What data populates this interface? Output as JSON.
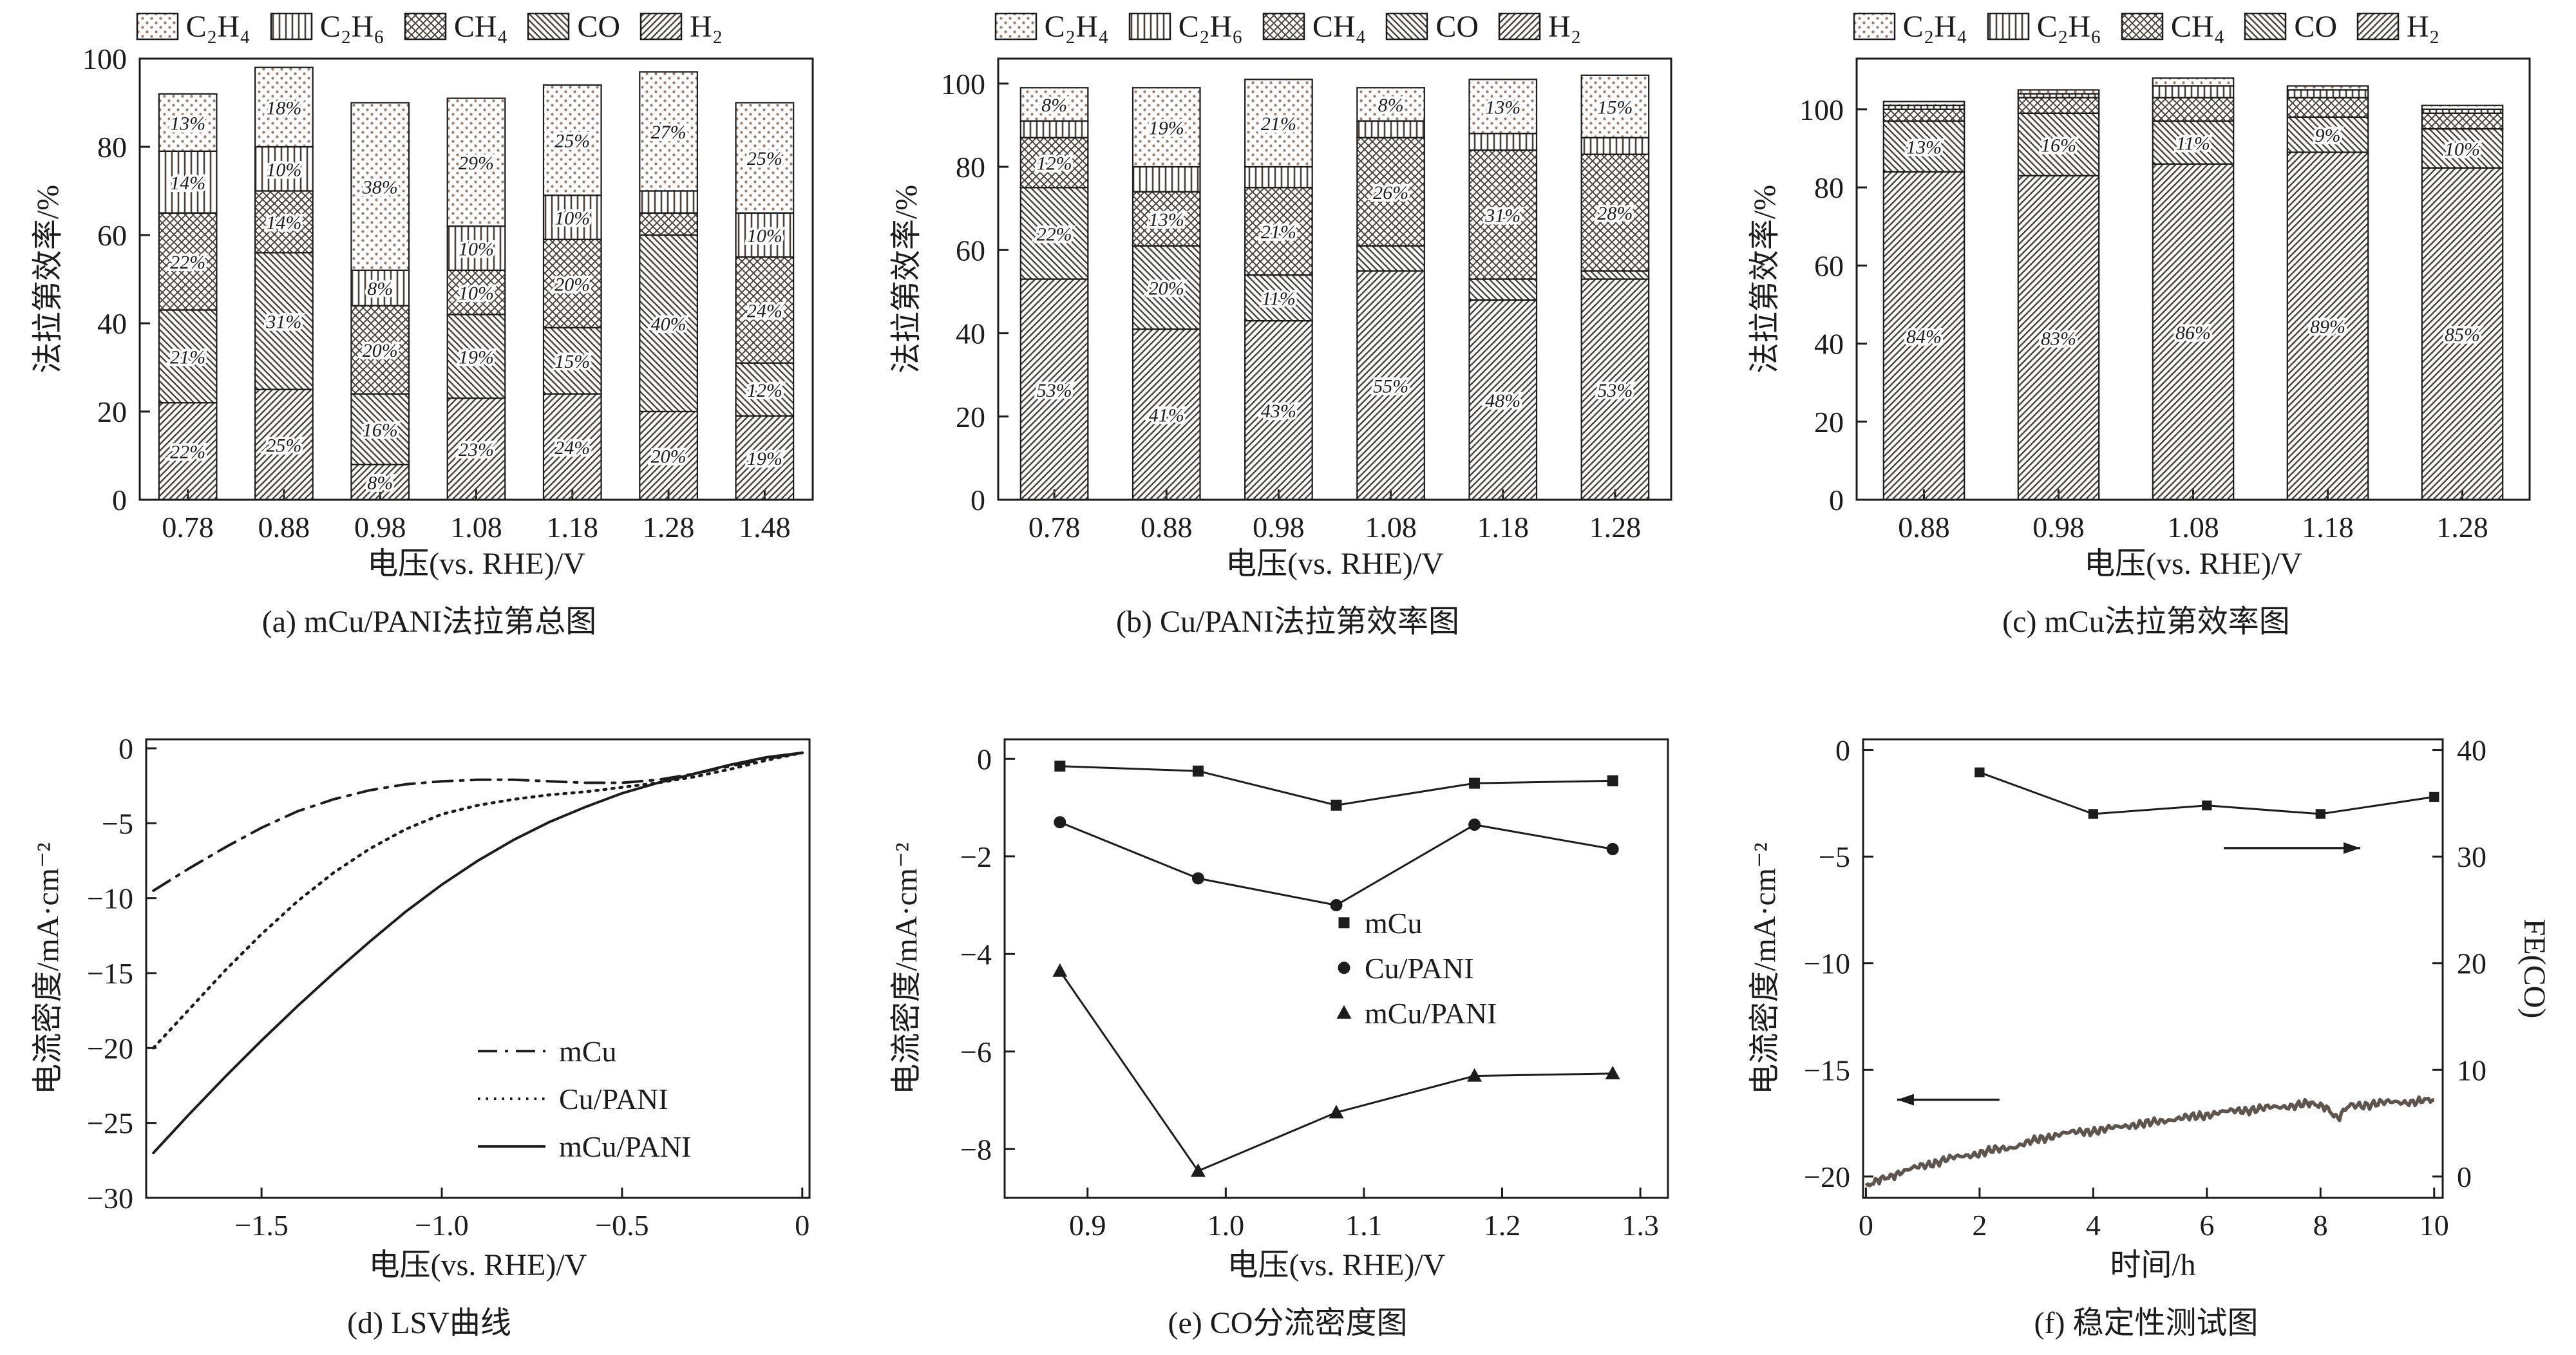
{
  "figure": {
    "background": "#ffffff"
  },
  "colors": {
    "ink": "#1c1c1c",
    "hatch": "#4a423c",
    "dots": "#9b7f6d",
    "noisy": "#5d544e"
  },
  "gas_legend": {
    "items": [
      {
        "id": "C2H4",
        "label": "C₂H₄",
        "pattern": "dots"
      },
      {
        "id": "C2H6",
        "label": "C₂H₆",
        "pattern": "vert"
      },
      {
        "id": "CH4",
        "label": "CH₄",
        "pattern": "cross"
      },
      {
        "id": "CO",
        "label": "CO",
        "pattern": "back"
      },
      {
        "id": "H2",
        "label": "H₂",
        "pattern": "fwd"
      }
    ]
  },
  "chart_data": [
    {
      "id": "a",
      "type": "stacked_bar",
      "caption": "(a) mCu/PANI法拉第总图",
      "xlabel": "电压(vs. RHE)/V",
      "ylabel": "法拉第效率/%",
      "categories": [
        "0.78",
        "0.88",
        "0.98",
        "1.08",
        "1.18",
        "1.28",
        "1.48"
      ],
      "ylim": [
        0,
        100
      ],
      "yticks": [
        0,
        20,
        40,
        60,
        80,
        100
      ],
      "series": [
        {
          "gas": "H2",
          "pattern": "fwd",
          "values": [
            22,
            25,
            8,
            23,
            24,
            20,
            19
          ]
        },
        {
          "gas": "CO",
          "pattern": "back",
          "values": [
            21,
            31,
            16,
            19,
            15,
            40,
            12
          ]
        },
        {
          "gas": "CH4",
          "pattern": "cross",
          "values": [
            22,
            14,
            20,
            10,
            20,
            5,
            24
          ]
        },
        {
          "gas": "C2H6",
          "pattern": "vert",
          "values": [
            14,
            10,
            8,
            10,
            10,
            5,
            10
          ]
        },
        {
          "gas": "C2H4",
          "pattern": "dots",
          "values": [
            13,
            18,
            38,
            29,
            25,
            27,
            25
          ]
        }
      ]
    },
    {
      "id": "b",
      "type": "stacked_bar",
      "caption": "(b) Cu/PANI法拉第效率图",
      "xlabel": "电压(vs. RHE)/V",
      "ylabel": "法拉第效率/%",
      "categories": [
        "0.78",
        "0.88",
        "0.98",
        "1.08",
        "1.18",
        "1.28"
      ],
      "ylim": [
        0,
        106
      ],
      "yticks": [
        0,
        20,
        40,
        60,
        80,
        100
      ],
      "series": [
        {
          "gas": "H2",
          "pattern": "fwd",
          "values": [
            53,
            41,
            43,
            55,
            48,
            53
          ]
        },
        {
          "gas": "CO",
          "pattern": "back",
          "values": [
            22,
            20,
            11,
            6,
            5,
            2
          ]
        },
        {
          "gas": "CH4",
          "pattern": "cross",
          "values": [
            12,
            13,
            21,
            26,
            31,
            28
          ]
        },
        {
          "gas": "C2H6",
          "pattern": "vert",
          "values": [
            4,
            6,
            5,
            4,
            4,
            4
          ]
        },
        {
          "gas": "C2H4",
          "pattern": "dots",
          "values": [
            8,
            19,
            21,
            8,
            13,
            15
          ]
        }
      ]
    },
    {
      "id": "c",
      "type": "stacked_bar",
      "caption": "(c) mCu法拉第效率图",
      "xlabel": "电压(vs. RHE)/V",
      "ylabel": "法拉第效率/%",
      "categories": [
        "0.88",
        "0.98",
        "1.08",
        "1.18",
        "1.28"
      ],
      "ylim": [
        0,
        113
      ],
      "yticks": [
        0,
        20,
        40,
        60,
        80,
        100
      ],
      "series": [
        {
          "gas": "H2",
          "pattern": "fwd",
          "values": [
            84,
            83,
            86,
            89,
            85
          ]
        },
        {
          "gas": "CO",
          "pattern": "back",
          "values": [
            13,
            16,
            11,
            9,
            10
          ]
        },
        {
          "gas": "CH4",
          "pattern": "cross",
          "values": [
            3,
            4,
            6,
            5,
            4
          ]
        },
        {
          "gas": "C2H6",
          "pattern": "vert",
          "values": [
            1,
            1,
            3,
            2,
            1
          ]
        },
        {
          "gas": "C2H4",
          "pattern": "dots",
          "values": [
            1,
            1,
            2,
            1,
            1
          ]
        }
      ]
    },
    {
      "id": "d",
      "type": "line",
      "caption": "(d) LSV曲线",
      "xlabel": "电压(vs. RHE)/V",
      "ylabel": "电流密度/mA·cm⁻²",
      "xlim": [
        -1.82,
        0.02
      ],
      "ylim": [
        -30,
        0.6
      ],
      "xticks": {
        "values": [
          -1.5,
          -1.0,
          -0.5,
          0
        ],
        "labels": [
          "-1.5",
          "-1.0",
          "-0.5",
          "0"
        ]
      },
      "yticks": [
        0,
        -5,
        -10,
        -15,
        -20,
        -25,
        -30
      ],
      "x": [
        -1.8,
        -1.7,
        -1.6,
        -1.5,
        -1.4,
        -1.3,
        -1.2,
        -1.1,
        -1.0,
        -0.9,
        -0.8,
        -0.7,
        -0.6,
        -0.5,
        -0.4,
        -0.3,
        -0.2,
        -0.1,
        0
      ],
      "series": [
        {
          "name": "mCu",
          "style": "dashdot",
          "y": [
            -9.5,
            -8.0,
            -6.6,
            -5.3,
            -4.2,
            -3.4,
            -2.8,
            -2.4,
            -2.2,
            -2.1,
            -2.1,
            -2.2,
            -2.3,
            -2.3,
            -2.1,
            -1.7,
            -1.2,
            -0.7,
            -0.3
          ]
        },
        {
          "name": "Cu/PANI",
          "style": "dotted",
          "y": [
            -20.0,
            -17.4,
            -14.8,
            -12.4,
            -10.2,
            -8.3,
            -6.7,
            -5.4,
            -4.4,
            -3.8,
            -3.4,
            -3.1,
            -2.9,
            -2.6,
            -2.3,
            -1.9,
            -1.4,
            -0.8,
            -0.3
          ]
        },
        {
          "name": "mCu/PANI",
          "style": "solid",
          "y": [
            -27.0,
            -24.4,
            -21.9,
            -19.5,
            -17.2,
            -15.0,
            -12.9,
            -10.9,
            -9.1,
            -7.5,
            -6.1,
            -4.9,
            -3.9,
            -3.0,
            -2.3,
            -1.7,
            -1.1,
            -0.6,
            -0.3
          ]
        }
      ],
      "legend": {
        "fx": 0.5,
        "fy": 0.68
      }
    },
    {
      "id": "e",
      "type": "scatter_line",
      "caption": "(e) CO分流密度图",
      "xlabel": "电压(vs. RHE)/V",
      "ylabel": "电流密度/mA·cm⁻²",
      "xlim": [
        0.84,
        1.32
      ],
      "ylim": [
        -9,
        0.4
      ],
      "xticks": {
        "values": [
          0.9,
          1.0,
          1.1,
          1.2,
          1.3
        ],
        "labels": [
          "0.9",
          "1.0",
          "1.1",
          "1.2",
          "1.3"
        ]
      },
      "yticks": [
        0,
        -2,
        -4,
        -6,
        -8
      ],
      "x": [
        0.88,
        0.98,
        1.08,
        1.18,
        1.28
      ],
      "series": [
        {
          "name": "mCu",
          "marker": "square",
          "y": [
            -0.15,
            -0.25,
            -0.95,
            -0.5,
            -0.45
          ]
        },
        {
          "name": "Cu/PANI",
          "marker": "circle",
          "y": [
            -1.3,
            -2.45,
            -3.0,
            -1.35,
            -1.85
          ]
        },
        {
          "name": "mCu/PANI",
          "marker": "triangle",
          "y": [
            -4.35,
            -8.45,
            -7.25,
            -6.5,
            -6.45
          ]
        }
      ],
      "legend": {
        "fx": 0.5,
        "fy": 0.4
      }
    },
    {
      "id": "f",
      "type": "dual_axis",
      "caption": "(f) 稳定性测试图",
      "xlabel": "时间/h",
      "ylabel_left": "电流密度/mA·cm⁻²",
      "ylabel_right": "FE(CO)",
      "xlim": [
        -0.05,
        10.15
      ],
      "ylim_left": [
        -21,
        0.5
      ],
      "xticks": {
        "values": [
          0,
          2,
          4,
          6,
          8,
          10
        ],
        "labels": [
          "0",
          "2",
          "4",
          "6",
          "8",
          "10"
        ]
      },
      "yticks_left": [
        0,
        -5,
        -10,
        -15,
        -20
      ],
      "yticks_right": [
        0,
        10,
        20,
        30,
        40
      ],
      "right_map": {
        "scale": 0.5,
        "offset": -20
      },
      "fe_series": {
        "name": "FE(CO)",
        "marker": "square",
        "points": [
          [
            2,
            37.9
          ],
          [
            4,
            34.0
          ],
          [
            6,
            34.8
          ],
          [
            8,
            34.0
          ],
          [
            10,
            35.6
          ]
        ]
      },
      "current_series": {
        "name": "current-density",
        "points": [
          [
            0,
            -20.5
          ],
          [
            0.3,
            -20.1
          ],
          [
            0.6,
            -19.8
          ],
          [
            1.0,
            -19.5
          ],
          [
            1.4,
            -19.2
          ],
          [
            1.8,
            -19.0
          ],
          [
            2.2,
            -18.8
          ],
          [
            2.6,
            -18.6
          ],
          [
            3.0,
            -18.3
          ],
          [
            3.4,
            -18.0
          ],
          [
            3.8,
            -17.9
          ],
          [
            4.2,
            -17.8
          ],
          [
            4.6,
            -17.6
          ],
          [
            5.0,
            -17.5
          ],
          [
            5.4,
            -17.3
          ],
          [
            5.8,
            -17.2
          ],
          [
            6.2,
            -17.0
          ],
          [
            6.6,
            -16.9
          ],
          [
            7.0,
            -16.8
          ],
          [
            7.4,
            -16.7
          ],
          [
            7.8,
            -16.6
          ],
          [
            8.1,
            -16.7
          ],
          [
            8.3,
            -17.3
          ],
          [
            8.5,
            -16.7
          ],
          [
            8.9,
            -16.6
          ],
          [
            9.3,
            -16.5
          ],
          [
            9.7,
            -16.5
          ],
          [
            10,
            -16.4
          ]
        ]
      },
      "arrows": [
        {
          "x1": 2.35,
          "y1": -16.4,
          "x2": 0.55,
          "y2": -16.4
        },
        {
          "x1": 6.3,
          "y1": -4.6,
          "x2": 8.7,
          "y2": -4.6
        }
      ]
    }
  ]
}
